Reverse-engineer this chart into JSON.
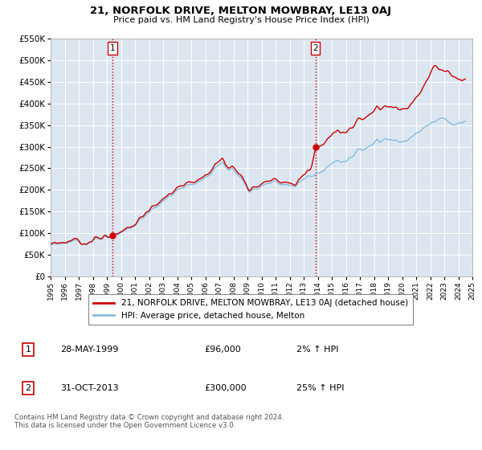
{
  "title": "21, NORFOLK DRIVE, MELTON MOWBRAY, LE13 0AJ",
  "subtitle": "Price paid vs. HM Land Registry's House Price Index (HPI)",
  "bg_color": "#dce6f0",
  "red_color": "#cc0000",
  "blue_color": "#88bbdd",
  "legend_label_red": "21, NORFOLK DRIVE, MELTON MOWBRAY, LE13 0AJ (detached house)",
  "legend_label_blue": "HPI: Average price, detached house, Melton",
  "marker1_date_num": 1999.41,
  "marker1_value": 96000,
  "marker1_label": "28-MAY-1999",
  "marker1_price": "£96,000",
  "marker1_hpi": "2% ↑ HPI",
  "marker2_date_num": 2013.83,
  "marker2_value": 300000,
  "marker2_label": "31-OCT-2013",
  "marker2_price": "£300,000",
  "marker2_hpi": "25% ↑ HPI",
  "xmin": 1995,
  "xmax": 2025,
  "ymin": 0,
  "ymax": 550000,
  "yticks": [
    0,
    50000,
    100000,
    150000,
    200000,
    250000,
    300000,
    350000,
    400000,
    450000,
    500000,
    550000
  ],
  "footer_text": "Contains HM Land Registry data © Crown copyright and database right 2024.\nThis data is licensed under the Open Government Licence v3.0.",
  "vline1_x": 1999.41,
  "vline2_x": 2013.83
}
